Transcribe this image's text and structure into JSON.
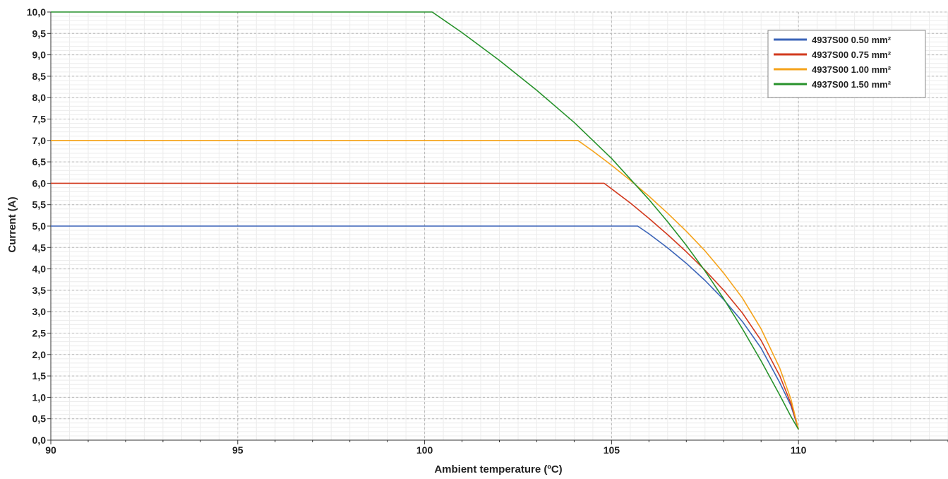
{
  "chart_data": {
    "type": "line",
    "title": "",
    "xlabel": "Ambient temperature (ºC)",
    "ylabel": "Current (A)",
    "xlim": [
      90,
      114
    ],
    "ylim": [
      0,
      10
    ],
    "x_ticks": [
      90,
      95,
      100,
      105,
      110
    ],
    "x_tick_labels": [
      "90",
      "95",
      "100",
      "105",
      "110"
    ],
    "y_ticks": [
      0,
      0.5,
      1,
      1.5,
      2,
      2.5,
      3,
      3.5,
      4,
      4.5,
      5,
      5.5,
      6,
      6.5,
      7,
      7.5,
      8,
      8.5,
      9,
      9.5,
      10
    ],
    "y_tick_labels": [
      "0,0",
      "0,5",
      "1,0",
      "1,5",
      "2,0",
      "2,5",
      "3,0",
      "3,5",
      "4,0",
      "4,5",
      "5,0",
      "5,5",
      "6,0",
      "6,5",
      "7,0",
      "7,5",
      "8,0",
      "8,5",
      "9,0",
      "9,5",
      "10,0"
    ],
    "grid": true,
    "legend_position": "top-right",
    "series": [
      {
        "name": "4937S00 0.50 mm²",
        "color": "#3b64b8",
        "x": [
          90,
          105.7,
          106.0,
          106.5,
          107.0,
          107.5,
          108.0,
          108.5,
          109.0,
          109.5,
          109.8,
          110.0
        ],
        "y": [
          5.0,
          5.0,
          4.82,
          4.49,
          4.13,
          3.73,
          3.28,
          2.77,
          2.15,
          1.34,
          0.8,
          0.25
        ]
      },
      {
        "name": "4937S00 0.75 mm²",
        "color": "#d23a1e",
        "x": [
          90,
          104.8,
          105.0,
          105.5,
          106.0,
          106.5,
          107.0,
          107.5,
          108.0,
          108.5,
          109.0,
          109.5,
          109.8,
          110.0
        ],
        "y": [
          6.0,
          6.0,
          5.87,
          5.54,
          5.18,
          4.8,
          4.4,
          3.97,
          3.5,
          2.97,
          2.33,
          1.5,
          0.85,
          0.25
        ]
      },
      {
        "name": "4937S00 1.00 mm²",
        "color": "#f5a31a",
        "x": [
          90,
          104.1,
          104.5,
          105.0,
          105.5,
          106.0,
          106.5,
          107.0,
          107.5,
          108.0,
          108.5,
          109.0,
          109.5,
          109.8,
          110.0
        ],
        "y": [
          7.0,
          7.0,
          6.75,
          6.42,
          6.07,
          5.7,
          5.3,
          4.88,
          4.42,
          3.9,
          3.32,
          2.6,
          1.68,
          0.95,
          0.25
        ]
      },
      {
        "name": "4937S00 1.50 mm²",
        "color": "#27922b",
        "x": [
          90,
          100.2,
          101.0,
          102.0,
          103.0,
          104.0,
          105.0,
          106.0,
          106.5,
          107.0,
          107.5,
          108.0,
          108.5,
          109.0,
          109.5,
          109.8,
          110.0
        ],
        "y": [
          10.0,
          10.0,
          9.52,
          8.87,
          8.17,
          7.42,
          6.58,
          5.62,
          5.1,
          4.55,
          3.95,
          3.3,
          2.6,
          1.85,
          1.05,
          0.55,
          0.25
        ]
      }
    ]
  }
}
